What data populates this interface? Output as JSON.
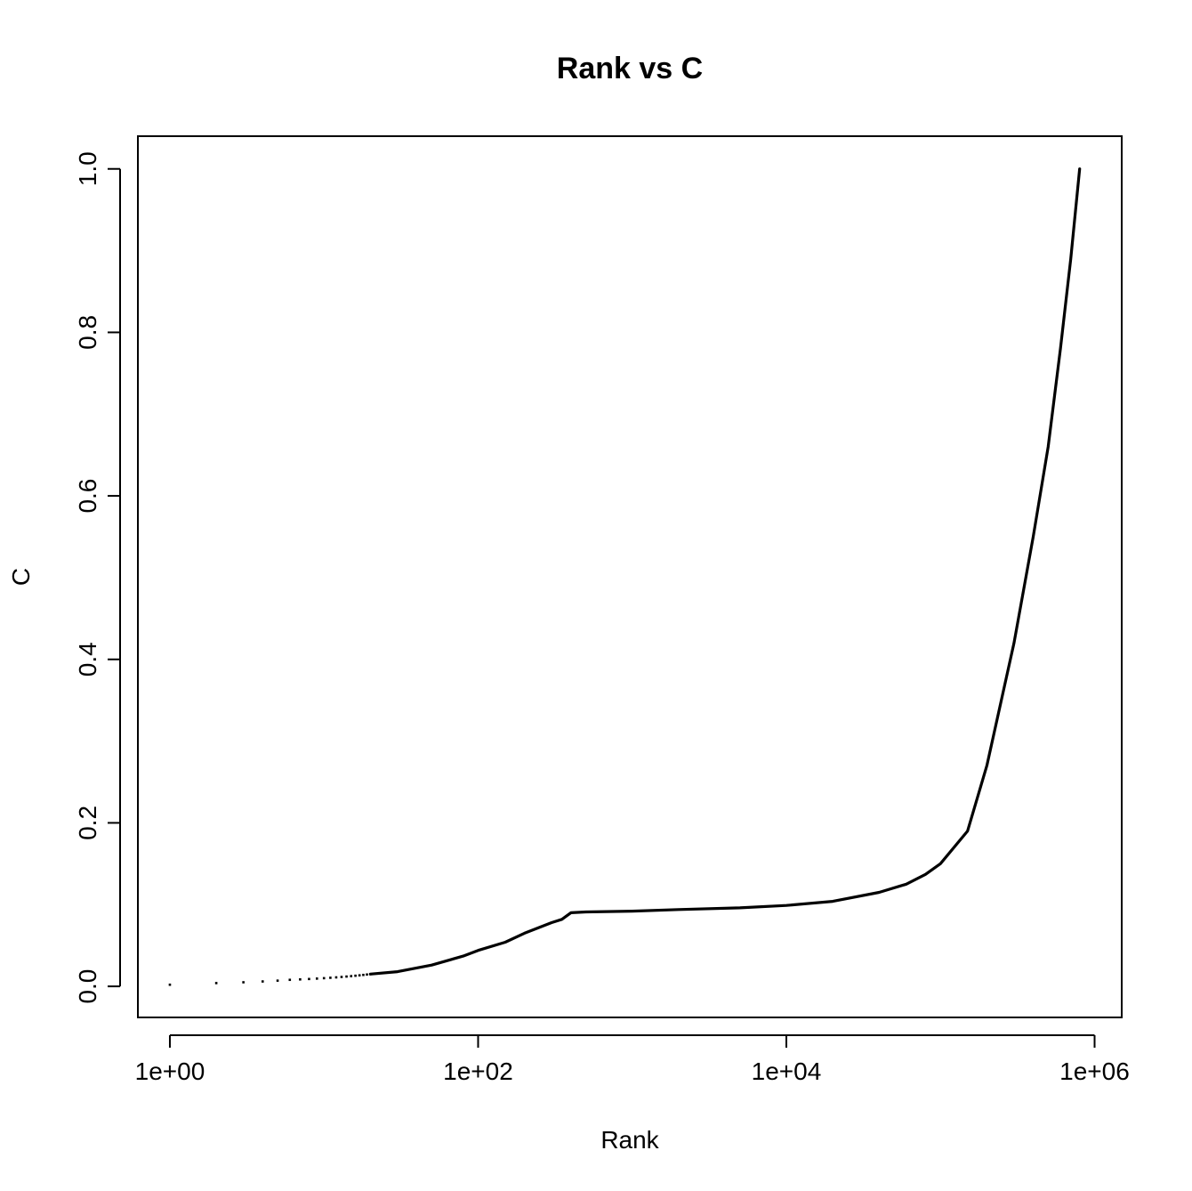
{
  "chart_data": {
    "type": "scatter",
    "title": "Rank vs C",
    "xlabel": "Rank",
    "ylabel": "C",
    "xscale": "log",
    "xlim": [
      0.62,
      1500000
    ],
    "ylim": [
      -0.038,
      1.04
    ],
    "xticks": [
      1,
      100,
      10000,
      1000000
    ],
    "xtick_labels": [
      "1e+00",
      "1e+02",
      "1e+04",
      "1e+06"
    ],
    "yticks": [
      0,
      0.2,
      0.4,
      0.6,
      0.8,
      1.0
    ],
    "ytick_labels": [
      "0.0",
      "0.2",
      "0.4",
      "0.6",
      "0.8",
      "1.0"
    ],
    "grid": false,
    "legend": "none",
    "discrete_points": {
      "x": [
        1,
        2,
        3,
        4,
        5,
        6,
        7,
        8,
        9,
        10,
        11,
        12,
        13,
        14,
        15,
        16,
        17,
        18,
        19,
        20
      ],
      "y": [
        0.002,
        0.004,
        0.005,
        0.006,
        0.007,
        0.008,
        0.0085,
        0.009,
        0.0095,
        0.01,
        0.0105,
        0.011,
        0.0115,
        0.012,
        0.0125,
        0.013,
        0.0135,
        0.014,
        0.0145,
        0.015
      ]
    },
    "curve": {
      "x": [
        20,
        30,
        50,
        80,
        100,
        150,
        200,
        300,
        350,
        400,
        500,
        1000,
        2000,
        5000,
        10000,
        20000,
        40000,
        60000,
        80000,
        100000,
        150000,
        200000,
        300000,
        400000,
        500000,
        600000,
        700000,
        800000
      ],
      "y": [
        0.015,
        0.018,
        0.026,
        0.037,
        0.044,
        0.054,
        0.065,
        0.078,
        0.082,
        0.09,
        0.091,
        0.092,
        0.094,
        0.096,
        0.099,
        0.104,
        0.115,
        0.125,
        0.137,
        0.15,
        0.19,
        0.27,
        0.42,
        0.55,
        0.66,
        0.78,
        0.89,
        1.0
      ]
    }
  }
}
